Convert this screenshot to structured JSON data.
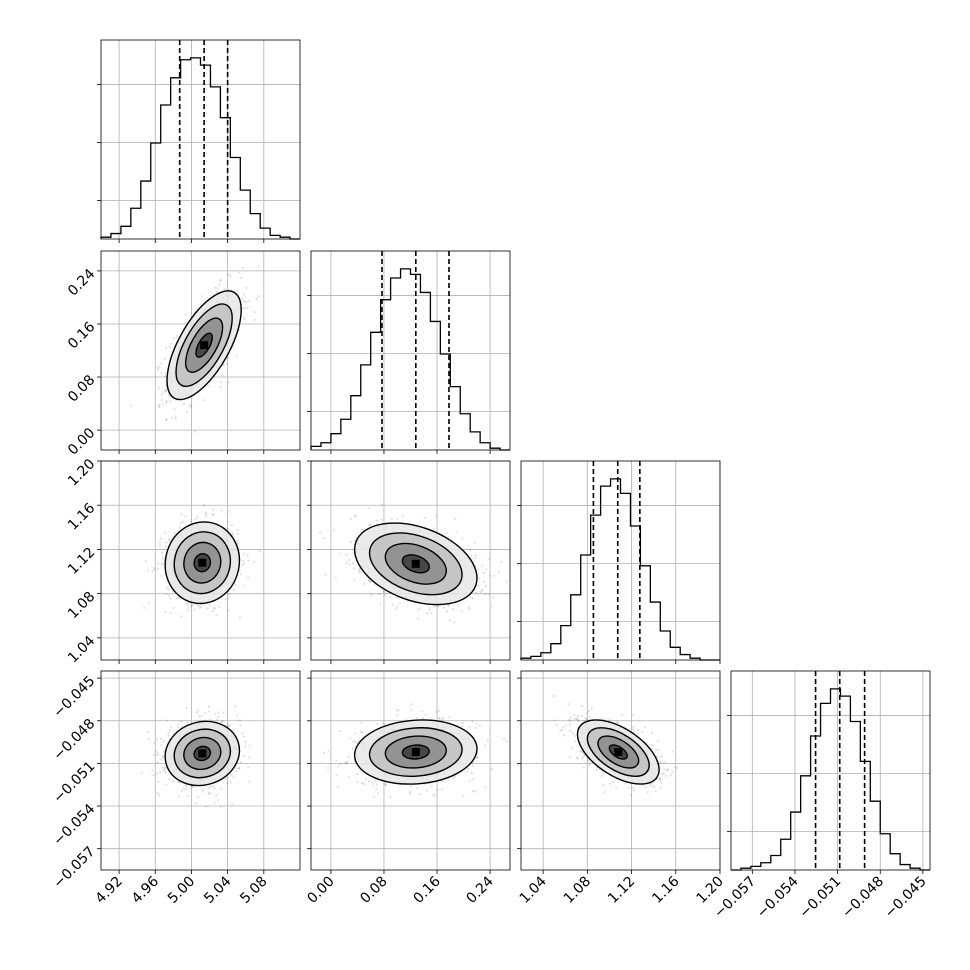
{
  "chart_data": {
    "type": "corner",
    "grid": true,
    "histogram_quantiles": [
      0.16,
      0.5,
      0.84
    ],
    "params": [
      {
        "range": [
          4.9,
          5.12
        ],
        "ticks": [
          4.92,
          4.96,
          5.0,
          5.04,
          5.08
        ],
        "tick_labels": [
          "4.92",
          "4.96",
          "5.00",
          "5.04",
          "5.08"
        ],
        "quantile_lines": [
          4.987,
          5.014,
          5.04
        ],
        "hist_heights": [
          0.01,
          0.03,
          0.07,
          0.17,
          0.32,
          0.53,
          0.74,
          0.89,
          0.99,
          1.0,
          0.96,
          0.84,
          0.67,
          0.45,
          0.27,
          0.14,
          0.06,
          0.02,
          0.01,
          0.0
        ]
      },
      {
        "range": [
          -0.03,
          0.27
        ],
        "ticks": [
          0.0,
          0.08,
          0.16,
          0.24
        ],
        "tick_labels": [
          "0.00",
          "0.08",
          "0.16",
          "0.24"
        ],
        "quantile_lines": [
          0.077,
          0.128,
          0.178
        ],
        "hist_heights": [
          0.02,
          0.04,
          0.09,
          0.17,
          0.3,
          0.47,
          0.65,
          0.83,
          0.95,
          1.0,
          0.97,
          0.87,
          0.71,
          0.53,
          0.35,
          0.2,
          0.1,
          0.04,
          0.01,
          0.0
        ]
      },
      {
        "range": [
          1.02,
          1.2
        ],
        "ticks": [
          1.04,
          1.08,
          1.12,
          1.16,
          1.2
        ],
        "tick_labels": [
          "1.04",
          "1.08",
          "1.12",
          "1.16",
          "1.20"
        ],
        "quantile_lines": [
          1.0855,
          1.1075,
          1.1275
        ],
        "hist_heights": [
          0.01,
          0.02,
          0.04,
          0.09,
          0.19,
          0.36,
          0.58,
          0.8,
          0.96,
          1.0,
          0.92,
          0.74,
          0.52,
          0.32,
          0.16,
          0.07,
          0.03,
          0.01,
          0.0,
          0.0
        ]
      },
      {
        "range": [
          -0.0585,
          -0.0445
        ],
        "ticks": [
          -0.057,
          -0.054,
          -0.051,
          -0.048,
          -0.045
        ],
        "tick_labels": [
          "−0.057",
          "−0.054",
          "−0.051",
          "−0.048",
          "−0.045"
        ],
        "quantile_lines": [
          -0.05255,
          -0.05085,
          -0.0491
        ],
        "hist_heights": [
          0.0,
          0.01,
          0.02,
          0.04,
          0.08,
          0.17,
          0.32,
          0.52,
          0.74,
          0.92,
          1.0,
          0.96,
          0.82,
          0.6,
          0.38,
          0.2,
          0.09,
          0.03,
          0.01,
          0.0
        ]
      }
    ],
    "pairs": [
      {
        "row": 1,
        "col": 0,
        "mean": [
          5.014,
          0.128
        ],
        "sd": [
          0.02,
          0.04
        ],
        "corr": 0.65
      },
      {
        "row": 2,
        "col": 0,
        "mean": [
          5.012,
          1.108
        ],
        "sd": [
          0.02,
          0.018
        ],
        "corr": 0.05
      },
      {
        "row": 2,
        "col": 1,
        "mean": [
          0.128,
          1.107
        ],
        "sd": [
          0.045,
          0.018
        ],
        "corr": -0.35
      },
      {
        "row": 3,
        "col": 0,
        "mean": [
          5.012,
          -0.0503
        ],
        "sd": [
          0.02,
          0.0011
        ],
        "corr": 0.1
      },
      {
        "row": 3,
        "col": 1,
        "mean": [
          0.128,
          -0.0502
        ],
        "sd": [
          0.045,
          0.0011
        ],
        "corr": 0.1
      },
      {
        "row": 3,
        "col": 2,
        "mean": [
          1.108,
          -0.0502
        ],
        "sd": [
          0.018,
          0.0011
        ],
        "corr": -0.55
      }
    ]
  }
}
